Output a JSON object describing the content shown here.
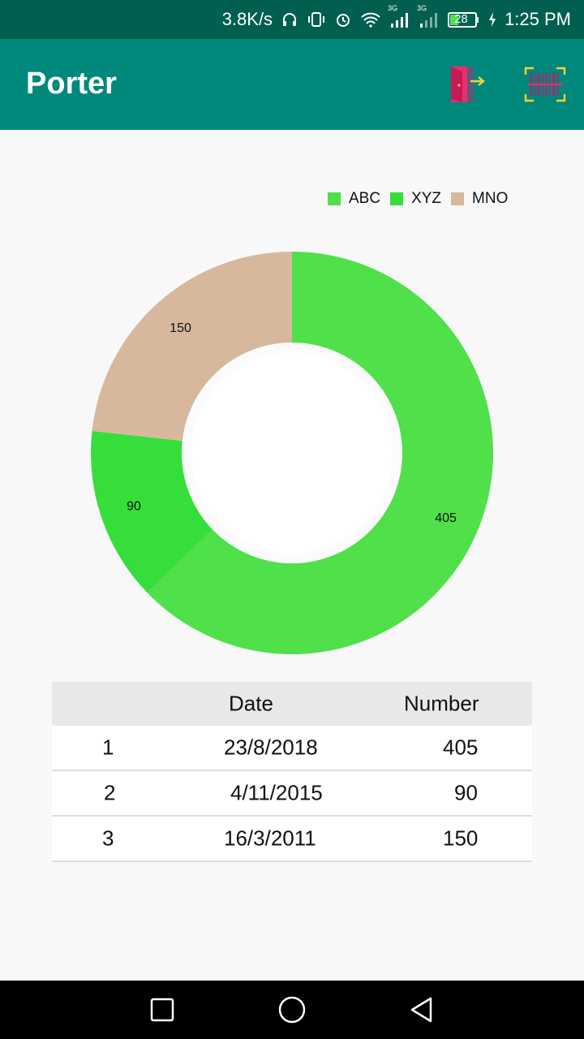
{
  "status_bar": {
    "speed": "3.8K/s",
    "battery": "28",
    "time": "1:25 PM",
    "network_1": "3G",
    "network_2": "3G"
  },
  "app_bar": {
    "title": "Porter",
    "icons": [
      "exit-door-icon",
      "barcode-scan-icon"
    ]
  },
  "legend": [
    {
      "label": "ABC",
      "color": "#4fe04a"
    },
    {
      "label": "XYZ",
      "color": "#36de3c"
    },
    {
      "label": "MNO",
      "color": "#d8b89c"
    }
  ],
  "chart_data": {
    "type": "pie",
    "style": "donut",
    "categories": [
      "ABC",
      "XYZ",
      "MNO"
    ],
    "values": [
      405,
      90,
      150
    ],
    "colors": [
      "#4fe04a",
      "#36de3c",
      "#d8b89c"
    ],
    "data_labels": [
      "405",
      "90",
      "150"
    ],
    "legend_position": "top-right"
  },
  "table": {
    "headers": [
      "",
      "Date",
      "Number"
    ],
    "rows": [
      {
        "index": "1",
        "date": "23/8/2018",
        "number": "405"
      },
      {
        "index": "2",
        "date": "4/11/2015",
        "number": "90"
      },
      {
        "index": "3",
        "date": "16/3/2011",
        "number": "150"
      }
    ]
  },
  "nav_bar": {
    "buttons": [
      "recents-button",
      "home-button",
      "back-button"
    ]
  }
}
